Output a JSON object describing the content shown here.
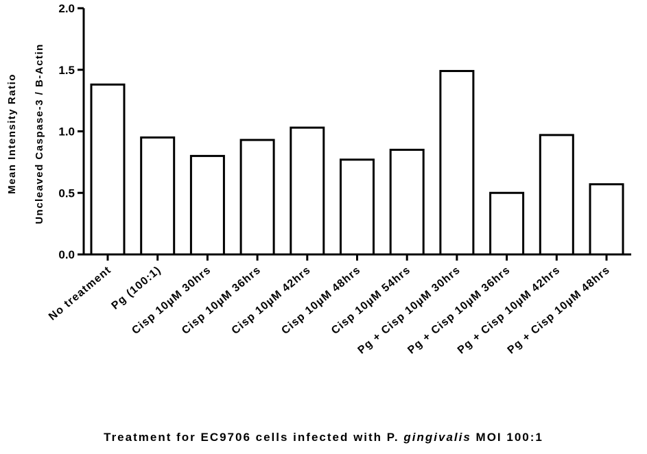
{
  "chart_data": {
    "type": "bar",
    "categories": [
      "No treatment",
      "Pg (100:1)",
      "Cisp 10µM 30hrs",
      "Cisp 10µM 36hrs",
      "Cisp 10µM 42hrs",
      "Cisp 10µM 48hrs",
      "Cisp 10µM 54hrs",
      "Pg + Cisp 10µM 30hrs",
      "Pg + Cisp 10µM 36hrs",
      "Pg + Cisp 10µM 42hrs",
      "Pg + Cisp 10µM 48hrs"
    ],
    "values": [
      1.38,
      0.95,
      0.8,
      0.93,
      1.03,
      0.77,
      0.85,
      1.49,
      0.5,
      0.97,
      0.57
    ],
    "title": "",
    "ylabel_line1": "Mean Intensity Ratio",
    "ylabel_line2": "Uncleaved Caspase-3 / B-Actin",
    "xlabel_prefix": "Treatment for EC9706 cells infected with P. ",
    "xlabel_italic": "gingivalis",
    "xlabel_suffix": " MOI 100:1",
    "ylim": [
      0,
      2.0
    ],
    "yticks": [
      "0.0",
      "0.5",
      "1.0",
      "1.5",
      "2.0"
    ],
    "grid": false,
    "legend": "none",
    "bar_fill": "#ffffff",
    "bar_stroke": "#000000"
  }
}
